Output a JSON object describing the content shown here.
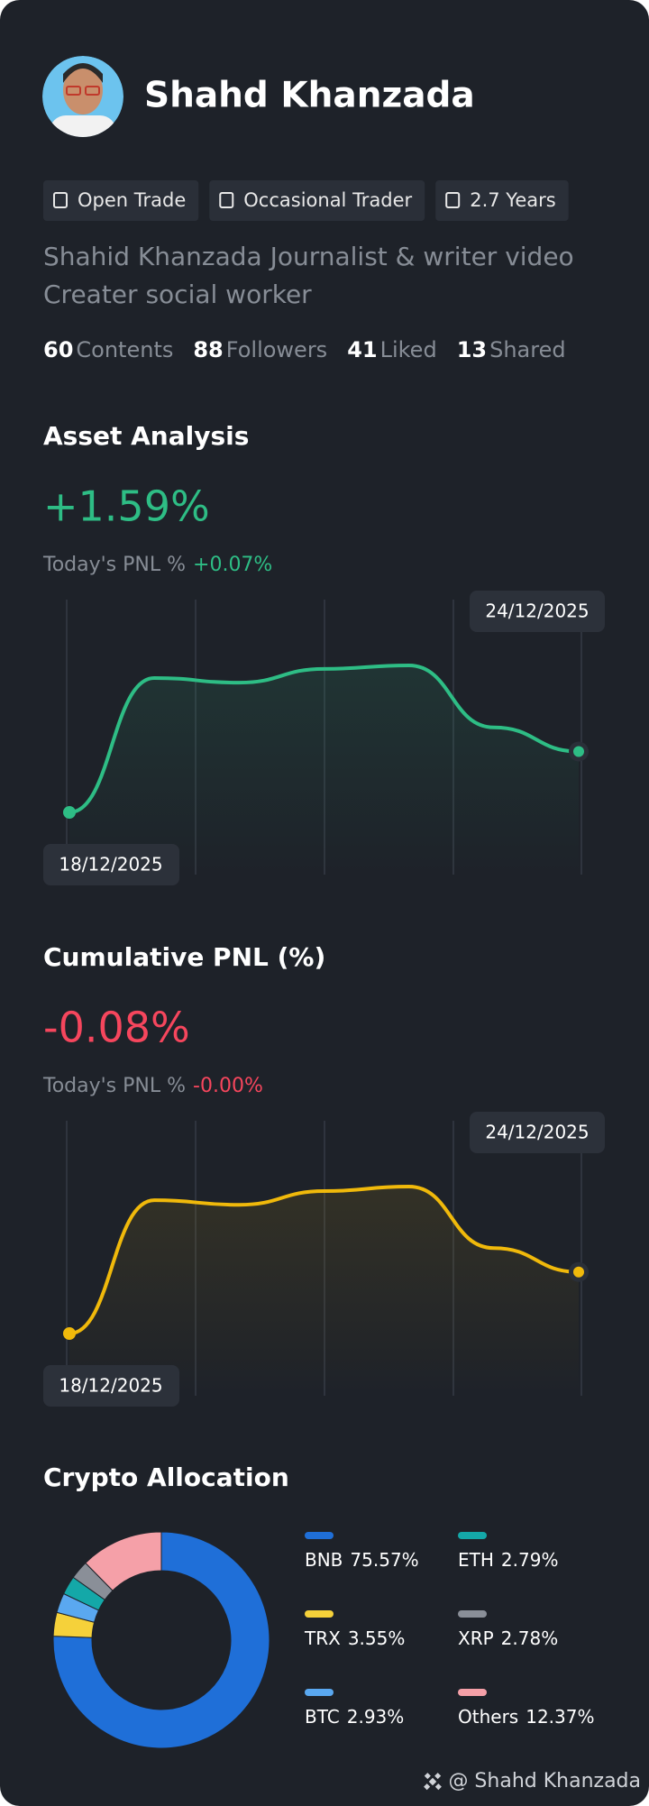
{
  "profile": {
    "name": "Shahd Khanzada",
    "tags": [
      "Open Trade",
      "Occasional Trader",
      "2.7 Years"
    ],
    "bio": [
      "Shahid Khanzada Journalist & writer video",
      "Creater social worker"
    ],
    "stats": [
      {
        "value": "60",
        "label": "Contents"
      },
      {
        "value": "88",
        "label": "Followers"
      },
      {
        "value": "41",
        "label": "Liked"
      },
      {
        "value": "13",
        "label": "Shared"
      }
    ]
  },
  "chart_data": [
    {
      "type": "line",
      "title": "Asset Analysis",
      "headline": "+1.59%",
      "subtitle": "Today's PNL %",
      "subtitle_value": "+0.07%",
      "color": "#2ebd85",
      "categories": [
        "18/12/2025",
        null,
        null,
        null,
        null,
        null,
        "24/12/2025"
      ],
      "values": [
        0,
        3.51,
        3.39,
        3.75,
        3.84,
        2.22,
        1.59
      ]
    },
    {
      "type": "line",
      "title": "Cumulative PNL (%)",
      "headline": "-0.08%",
      "subtitle": "Today's PNL %",
      "subtitle_value": "-0.00%",
      "color": "#f0b90b",
      "headline_color": "#f6465d",
      "categories": [
        "18/12/2025",
        null,
        null,
        null,
        null,
        null,
        "24/12/2025"
      ],
      "values": [
        -0.35,
        0.235,
        0.215,
        0.275,
        0.295,
        0.025,
        -0.08
      ]
    },
    {
      "type": "pie",
      "title": "Crypto Allocation",
      "categories": [
        "BNB",
        "TRX",
        "BTC",
        "ETH",
        "XRP",
        "Others"
      ],
      "values": [
        75.57,
        3.55,
        2.93,
        2.79,
        2.78,
        12.37
      ],
      "value_labels": [
        "75.57%",
        "3.55%",
        "2.93%",
        "2.79%",
        "2.78%",
        "12.37%"
      ],
      "colors": [
        "#1f6fd8",
        "#f5d13a",
        "#5aa8f0",
        "#14a8a8",
        "#8a8f98",
        "#f5a0a8"
      ]
    }
  ],
  "footer": "@ Shahd Khanzada"
}
